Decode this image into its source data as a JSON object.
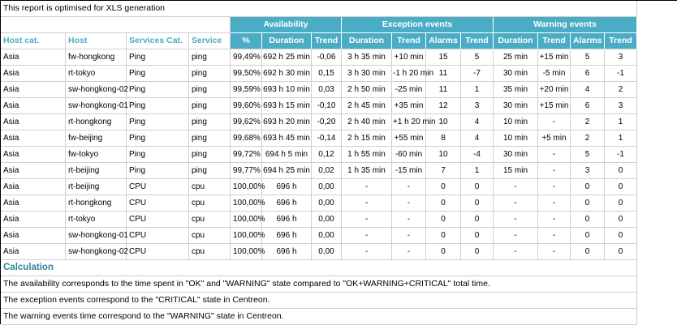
{
  "note_top": "This report is optimised for XLS generation",
  "groups": [
    {
      "label": "Availability",
      "span": 3
    },
    {
      "label": "Exception events",
      "span": 4
    },
    {
      "label": "Warning events",
      "span": 4
    }
  ],
  "columns": [
    "Host cat.",
    "Host",
    "Services Cat.",
    "Service",
    "%",
    "Duration",
    "Trend",
    "Duration",
    "Trend",
    "Alarms",
    "Trend",
    "Duration",
    "Trend",
    "Alarms",
    "Trend"
  ],
  "rows": [
    [
      "Asia",
      "fw-hongkong",
      "Ping",
      "ping",
      "99,49%",
      "692 h 25 min",
      "-0,06",
      "3 h 35 min",
      "+10 min",
      "15",
      "5",
      "25 min",
      "+15 min",
      "5",
      "3"
    ],
    [
      "Asia",
      "rt-tokyo",
      "Ping",
      "ping",
      "99,50%",
      "692 h 30 min",
      "0,15",
      "3 h 30 min",
      "-1 h 20 min",
      "11",
      "-7",
      "30 min",
      "-5 min",
      "6",
      "-1"
    ],
    [
      "Asia",
      "sw-hongkong-02",
      "Ping",
      "ping",
      "99,59%",
      "693 h 10 min",
      "0,03",
      "2 h 50 min",
      "-25 min",
      "11",
      "1",
      "35 min",
      "+20 min",
      "4",
      "2"
    ],
    [
      "Asia",
      "sw-hongkong-01",
      "Ping",
      "ping",
      "99,60%",
      "693 h 15 min",
      "-0,10",
      "2 h 45 min",
      "+35 min",
      "12",
      "3",
      "30 min",
      "+15 min",
      "6",
      "3"
    ],
    [
      "Asia",
      "rt-hongkong",
      "Ping",
      "ping",
      "99,62%",
      "693 h 20 min",
      "-0,20",
      "2 h 40 min",
      "+1 h 20 min",
      "10",
      "4",
      "10 min",
      "-",
      "2",
      "1"
    ],
    [
      "Asia",
      "fw-beijing",
      "Ping",
      "ping",
      "99,68%",
      "693 h 45 min",
      "-0,14",
      "2 h 15 min",
      "+55 min",
      "8",
      "4",
      "10 min",
      "+5 min",
      "2",
      "1"
    ],
    [
      "Asia",
      "fw-tokyo",
      "Ping",
      "ping",
      "99,72%",
      "694 h 5 min",
      "0,12",
      "1 h 55 min",
      "-60 min",
      "10",
      "-4",
      "30 min",
      "-",
      "5",
      "-1"
    ],
    [
      "Asia",
      "rt-beijing",
      "Ping",
      "ping",
      "99,77%",
      "694 h 25 min",
      "0,02",
      "1 h 35 min",
      "-15 min",
      "7",
      "1",
      "15 min",
      "-",
      "3",
      "0"
    ],
    [
      "Asia",
      "rt-beijing",
      "CPU",
      "cpu",
      "100,00%",
      "696 h",
      "0,00",
      "-",
      "-",
      "0",
      "0",
      "-",
      "-",
      "0",
      "0"
    ],
    [
      "Asia",
      "rt-hongkong",
      "CPU",
      "cpu",
      "100,00%",
      "696 h",
      "0,00",
      "-",
      "-",
      "0",
      "0",
      "-",
      "-",
      "0",
      "0"
    ],
    [
      "Asia",
      "rt-tokyo",
      "CPU",
      "cpu",
      "100,00%",
      "696 h",
      "0,00",
      "-",
      "-",
      "0",
      "0",
      "-",
      "-",
      "0",
      "0"
    ],
    [
      "Asia",
      "sw-hongkong-01",
      "CPU",
      "cpu",
      "100,00%",
      "696 h",
      "0,00",
      "-",
      "-",
      "0",
      "0",
      "-",
      "-",
      "0",
      "0"
    ],
    [
      "Asia",
      "sw-hongkong-02",
      "CPU",
      "cpu",
      "100,00%",
      "696 h",
      "0,00",
      "-",
      "-",
      "0",
      "0",
      "-",
      "-",
      "0",
      "0"
    ]
  ],
  "calculation": {
    "title": "Calculation",
    "notes": [
      "The availability corresponds to the time spent in \"OK\" and \"WARNING\" state compared to \"OK+WARNING+CRITICAL\" total time.",
      "The exception events correspond to the \"CRITICAL\" state in Centreon.",
      "The warning events time correspond to the \"WARNING\" state in Centreon."
    ]
  },
  "colors": {
    "header_teal": "#4BACC6",
    "header_text": "#FFFFFF",
    "left_header_text": "#4BACC6",
    "calculation_title": "#31859C",
    "gridline": "#CFCFCF"
  }
}
